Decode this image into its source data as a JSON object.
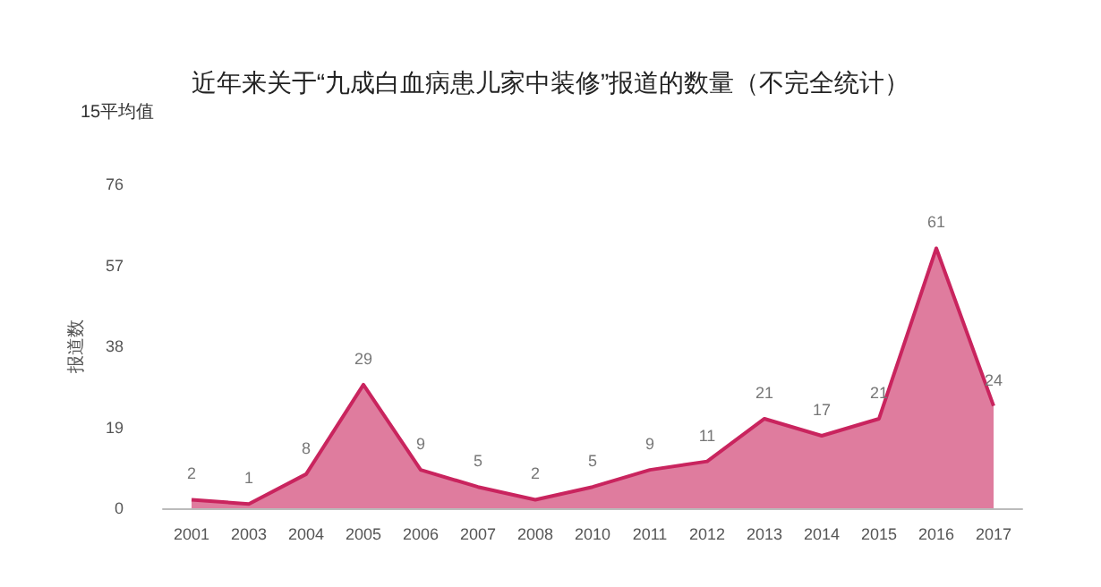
{
  "chart_data": {
    "type": "area",
    "title": "近年来关于“九成白血病患儿家中装修”报道的数量（不完全统计）",
    "ylabel": "报道数",
    "annotations": [
      "15平均值"
    ],
    "categories": [
      "2001",
      "2003",
      "2004",
      "2005",
      "2006",
      "2007",
      "2008",
      "2010",
      "2011",
      "2012",
      "2013",
      "2014",
      "2015",
      "2016",
      "2017"
    ],
    "series": [
      {
        "color": "#c9245e",
        "values": [
          2,
          1,
          8,
          29,
          9,
          5,
          2,
          5,
          9,
          11,
          21,
          17,
          21,
          61,
          24
        ]
      }
    ],
    "ylim": [
      0,
      76
    ],
    "yticks": [
      0,
      19,
      38,
      57,
      76
    ],
    "data_labels": true,
    "grid": false,
    "marker": "none"
  }
}
